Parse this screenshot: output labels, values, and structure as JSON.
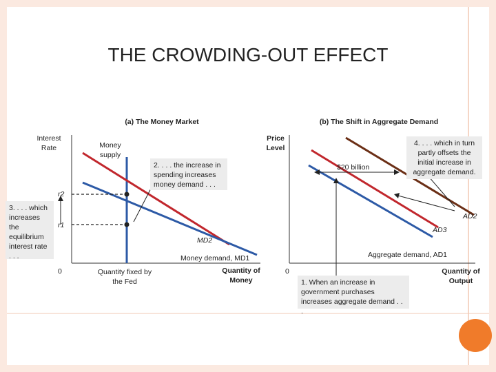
{
  "title": "THE CROWDING-OUT EFFECT",
  "panel_a": {
    "title": "(a) The Money Market",
    "y_axis_label": "Interest Rate",
    "supply_label": "Money supply",
    "quantity_label": "Quantity fixed by the Fed",
    "x_axis_label": "Quantity of Money",
    "origin": "0",
    "r2_label": "r2",
    "r1_label": "r1",
    "md2_label": "MD2",
    "md1_label": "Money demand, MD1",
    "note_increase": "2. . . . the increase in spending increases money demand . . .",
    "note_rate": "3. . . . which increases the equilibrium interest rate . . ."
  },
  "panel_b": {
    "title": "(b) The Shift in Aggregate Demand",
    "y_axis_label": "Price Level",
    "x_axis_label": "Quantity of Output",
    "origin": "0",
    "billion_label": "$20 billion",
    "ad2_label": "AD2",
    "ad3_label": "AD3",
    "ad1_label": "Aggregate demand, AD1",
    "note_offset": "4. . . . which in turn partly offsets the initial increase in aggregate demand.",
    "note_gov": "1. When an increase in government purchases increases aggregate demand . . ."
  },
  "colors": {
    "supply": "#2d5aa6",
    "md1": "#2d5aa6",
    "md2": "#c1272d",
    "ad1": "#2d5aa6",
    "ad2": "#6b2f16",
    "ad3": "#c1272d",
    "frame": "#f2c9b4",
    "accent_circle": "#f07b2a"
  }
}
